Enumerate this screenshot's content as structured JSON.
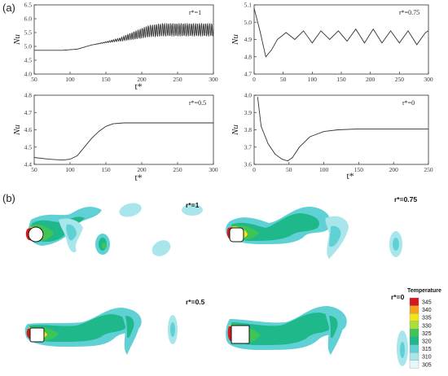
{
  "labels": {
    "a": "(a)",
    "b": "(b)"
  },
  "chart_data": [
    {
      "type": "line",
      "xlabel": "t*",
      "ylabel": "Nu",
      "annotation": "r*=1",
      "xlim": [
        50,
        300
      ],
      "ylim": [
        4.0,
        6.5
      ],
      "xticks": [
        50,
        100,
        150,
        200,
        250,
        300
      ],
      "yticks": [
        4.0,
        4.5,
        5.0,
        5.5,
        6.0,
        6.5
      ],
      "series": [
        {
          "values_desc": "steady then oscillating",
          "x": [
            50,
            90,
            110,
            130,
            150,
            170,
            190,
            210,
            230,
            250,
            270,
            300
          ],
          "y": [
            4.86,
            4.86,
            4.9,
            5.05,
            5.15,
            5.25,
            5.4,
            5.55,
            5.6,
            5.6,
            5.6,
            5.6
          ],
          "amp": [
            0,
            0,
            0,
            0,
            0.02,
            0.06,
            0.15,
            0.22,
            0.24,
            0.24,
            0.24,
            0.24
          ]
        }
      ]
    },
    {
      "type": "line",
      "xlabel": "",
      "ylabel": "Nu",
      "annotation": "r*=0.75",
      "xlim": [
        0,
        300
      ],
      "ylim": [
        4.7,
        5.1
      ],
      "xticks": [
        0,
        50,
        100,
        150,
        200,
        250,
        300
      ],
      "yticks": [
        4.7,
        4.8,
        4.9,
        5.0,
        5.1
      ],
      "series": [
        {
          "x": [
            0,
            10,
            20,
            30,
            40,
            55,
            70,
            85,
            100,
            115,
            130,
            145,
            160,
            175,
            190,
            205,
            220,
            235,
            250,
            265,
            280,
            295,
            300
          ],
          "y": [
            5.08,
            4.95,
            4.8,
            4.84,
            4.9,
            4.94,
            4.9,
            4.95,
            4.88,
            4.95,
            4.9,
            4.95,
            4.89,
            4.96,
            4.88,
            4.96,
            4.88,
            4.95,
            4.88,
            4.95,
            4.87,
            4.94,
            4.95
          ]
        }
      ]
    },
    {
      "type": "line",
      "xlabel": "t*",
      "ylabel": "Nu",
      "annotation": "r*=0.5",
      "xlim": [
        50,
        300
      ],
      "ylim": [
        4.4,
        4.8
      ],
      "xticks": [
        50,
        100,
        150,
        200,
        250,
        300
      ],
      "yticks": [
        4.4,
        4.5,
        4.6,
        4.7,
        4.8
      ],
      "series": [
        {
          "x": [
            50,
            70,
            90,
            100,
            110,
            120,
            130,
            140,
            150,
            160,
            175,
            200,
            250,
            300
          ],
          "y": [
            4.44,
            4.43,
            4.425,
            4.43,
            4.45,
            4.5,
            4.55,
            4.59,
            4.62,
            4.635,
            4.64,
            4.64,
            4.64,
            4.64
          ]
        }
      ]
    },
    {
      "type": "line",
      "xlabel": "t*",
      "ylabel": "Nu",
      "annotation": "r*=0",
      "xlim": [
        0,
        250
      ],
      "ylim": [
        3.6,
        4.0
      ],
      "xticks": [
        0,
        50,
        100,
        150,
        200,
        250
      ],
      "yticks": [
        3.6,
        3.7,
        3.8,
        3.9,
        4.0
      ],
      "series": [
        {
          "x": [
            5,
            10,
            20,
            30,
            40,
            48,
            55,
            65,
            80,
            100,
            120,
            150,
            200,
            250
          ],
          "y": [
            3.99,
            3.82,
            3.72,
            3.66,
            3.63,
            3.62,
            3.64,
            3.7,
            3.76,
            3.79,
            3.8,
            3.805,
            3.805,
            3.805
          ]
        }
      ]
    }
  ],
  "contours": [
    {
      "label": "r*=1"
    },
    {
      "label": "r*=0.75"
    },
    {
      "label": "r*=0.5"
    },
    {
      "label": "r*=0"
    }
  ],
  "legend": {
    "title": "Temperature",
    "levels": [
      "345",
      "340",
      "335",
      "330",
      "325",
      "320",
      "315",
      "310",
      "305"
    ],
    "colors": [
      "#d7191c",
      "#f5a21c",
      "#f2e51a",
      "#a8e03a",
      "#3fc456",
      "#1fb88a",
      "#5fd1d4",
      "#a9e6ec",
      "#e6f7f9"
    ]
  }
}
